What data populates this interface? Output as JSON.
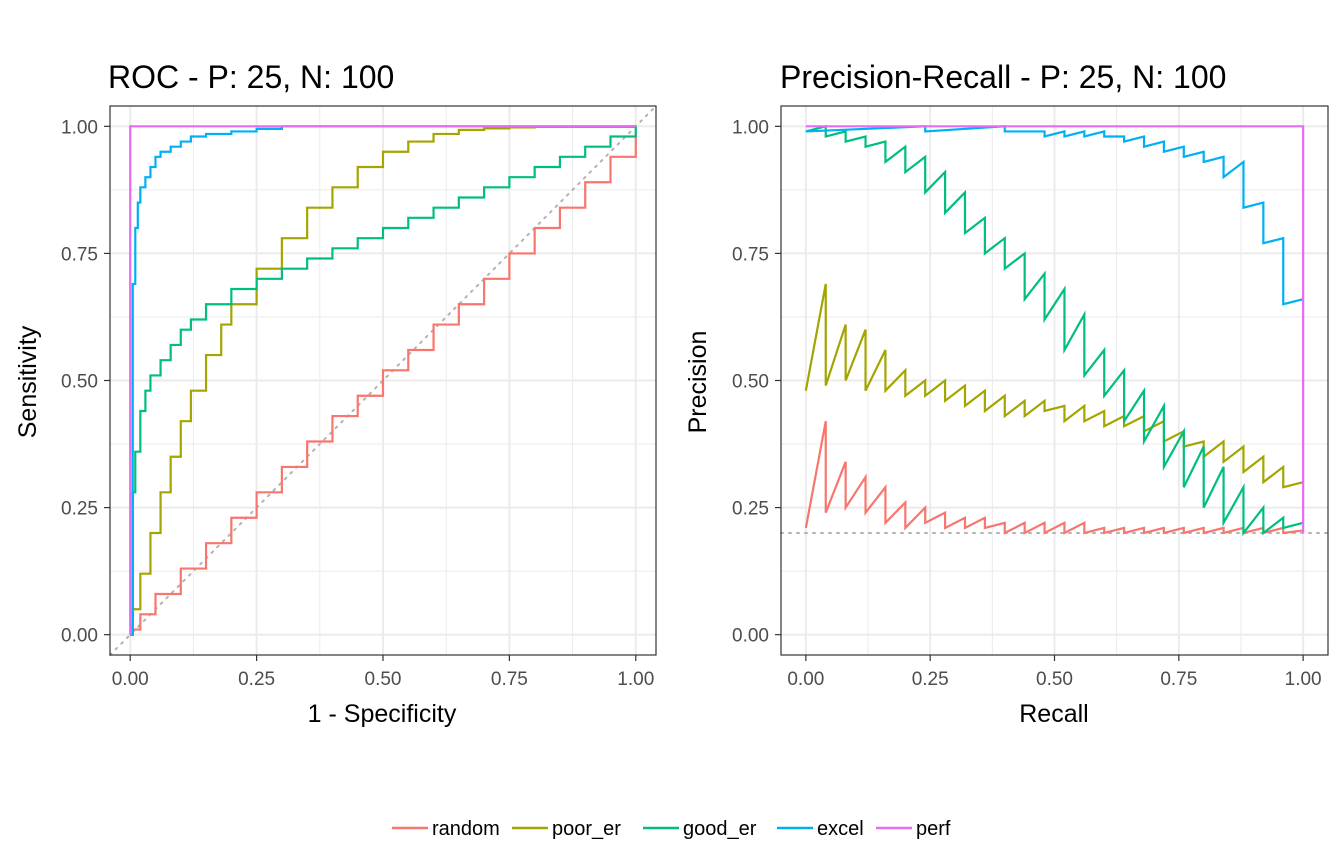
{
  "chart_data": [
    {
      "type": "line",
      "id": "roc",
      "title": "ROC - P: 25, N: 100",
      "xlabel": "1 - Specificity",
      "ylabel": "Sensitivity",
      "xlim": [
        -0.04,
        1.04
      ],
      "ylim": [
        -0.04,
        1.04
      ],
      "x_ticks": [
        "0.00",
        "0.25",
        "0.50",
        "0.75",
        "1.00"
      ],
      "y_ticks": [
        "0.00",
        "0.25",
        "0.50",
        "0.75",
        "1.00"
      ],
      "grid": true,
      "reference_line": {
        "style": "dotted",
        "color": "#b3b3b3",
        "from": [
          -0.04,
          -0.04
        ],
        "to": [
          1.04,
          1.04
        ]
      },
      "series": [
        {
          "name": "random",
          "color": "#F8766D",
          "step": true,
          "x": [
            0,
            0.02,
            0.05,
            0.1,
            0.15,
            0.2,
            0.25,
            0.3,
            0.35,
            0.4,
            0.45,
            0.5,
            0.55,
            0.6,
            0.65,
            0.7,
            0.75,
            0.8,
            0.85,
            0.9,
            0.95,
            1.0
          ],
          "y": [
            0.01,
            0.04,
            0.08,
            0.13,
            0.18,
            0.23,
            0.28,
            0.33,
            0.38,
            0.43,
            0.47,
            0.52,
            0.56,
            0.61,
            0.65,
            0.7,
            0.75,
            0.8,
            0.84,
            0.89,
            0.94,
            0.99
          ]
        },
        {
          "name": "poor_er",
          "color": "#A3A500",
          "step": true,
          "x": [
            0,
            0.005,
            0.02,
            0.04,
            0.06,
            0.08,
            0.1,
            0.12,
            0.15,
            0.18,
            0.2,
            0.25,
            0.3,
            0.35,
            0.4,
            0.45,
            0.5,
            0.55,
            0.6,
            0.65,
            0.7,
            0.75,
            0.8,
            1.0
          ],
          "y": [
            0,
            0.05,
            0.12,
            0.2,
            0.28,
            0.35,
            0.42,
            0.48,
            0.55,
            0.61,
            0.65,
            0.72,
            0.78,
            0.84,
            0.88,
            0.92,
            0.95,
            0.97,
            0.985,
            0.993,
            0.996,
            0.998,
            0.999,
            1.0
          ]
        },
        {
          "name": "good_er",
          "color": "#00BF7D",
          "step": true,
          "x": [
            0,
            0.005,
            0.01,
            0.02,
            0.03,
            0.04,
            0.06,
            0.08,
            0.1,
            0.12,
            0.15,
            0.2,
            0.25,
            0.3,
            0.35,
            0.4,
            0.45,
            0.5,
            0.55,
            0.6,
            0.65,
            0.7,
            0.75,
            0.8,
            0.85,
            0.9,
            0.95,
            1.0
          ],
          "y": [
            0,
            0.28,
            0.36,
            0.44,
            0.48,
            0.51,
            0.54,
            0.57,
            0.6,
            0.62,
            0.65,
            0.68,
            0.7,
            0.72,
            0.74,
            0.76,
            0.78,
            0.8,
            0.82,
            0.84,
            0.86,
            0.88,
            0.9,
            0.92,
            0.94,
            0.96,
            0.98,
            1.0
          ]
        },
        {
          "name": "excel",
          "color": "#00B0F6",
          "step": true,
          "x": [
            0,
            0.005,
            0.01,
            0.015,
            0.02,
            0.03,
            0.04,
            0.05,
            0.06,
            0.08,
            0.1,
            0.12,
            0.15,
            0.2,
            0.25,
            0.3,
            1.0
          ],
          "y": [
            0,
            0.69,
            0.8,
            0.85,
            0.88,
            0.9,
            0.92,
            0.94,
            0.95,
            0.96,
            0.97,
            0.98,
            0.985,
            0.99,
            0.995,
            1.0,
            1.0
          ]
        },
        {
          "name": "perf",
          "color": "#E76BF3",
          "step": false,
          "x": [
            0,
            0,
            1
          ],
          "y": [
            0,
            1,
            1
          ]
        }
      ]
    },
    {
      "type": "line",
      "id": "pr",
      "title": "Precision-Recall - P: 25, N: 100",
      "xlabel": "Recall",
      "ylabel": "Precision",
      "xlim": [
        -0.05,
        1.05
      ],
      "ylim": [
        -0.04,
        1.04
      ],
      "x_ticks": [
        "0.00",
        "0.25",
        "0.50",
        "0.75",
        "1.00"
      ],
      "y_ticks": [
        "0.00",
        "0.25",
        "0.50",
        "0.75",
        "1.00"
      ],
      "grid": true,
      "baseline": {
        "style": "dotted",
        "color": "#b3b3b3",
        "y": 0.2
      },
      "series": [
        {
          "name": "random",
          "color": "#F8766D",
          "x": [
            0,
            0.04,
            0.04,
            0.08,
            0.08,
            0.12,
            0.12,
            0.16,
            0.16,
            0.2,
            0.2,
            0.24,
            0.24,
            0.28,
            0.28,
            0.32,
            0.32,
            0.36,
            0.36,
            0.4,
            0.4,
            0.44,
            0.44,
            0.48,
            0.48,
            0.52,
            0.52,
            0.56,
            0.56,
            0.6,
            0.6,
            0.64,
            0.64,
            0.68,
            0.68,
            0.72,
            0.72,
            0.76,
            0.76,
            0.8,
            0.8,
            0.84,
            0.84,
            0.88,
            0.88,
            0.92,
            0.92,
            0.96,
            0.96,
            1.0
          ],
          "y": [
            0.21,
            0.42,
            0.24,
            0.34,
            0.25,
            0.31,
            0.24,
            0.29,
            0.22,
            0.26,
            0.21,
            0.25,
            0.22,
            0.24,
            0.21,
            0.23,
            0.21,
            0.23,
            0.21,
            0.22,
            0.2,
            0.22,
            0.2,
            0.22,
            0.2,
            0.22,
            0.2,
            0.22,
            0.2,
            0.21,
            0.2,
            0.21,
            0.2,
            0.21,
            0.2,
            0.21,
            0.2,
            0.21,
            0.2,
            0.21,
            0.2,
            0.21,
            0.2,
            0.21,
            0.2,
            0.21,
            0.2,
            0.21,
            0.2,
            0.205
          ]
        },
        {
          "name": "poor_er",
          "color": "#A3A500",
          "x": [
            0,
            0.04,
            0.04,
            0.08,
            0.08,
            0.12,
            0.12,
            0.16,
            0.16,
            0.2,
            0.2,
            0.24,
            0.24,
            0.28,
            0.28,
            0.32,
            0.32,
            0.36,
            0.36,
            0.4,
            0.4,
            0.44,
            0.44,
            0.48,
            0.48,
            0.52,
            0.52,
            0.56,
            0.56,
            0.6,
            0.6,
            0.64,
            0.64,
            0.68,
            0.68,
            0.72,
            0.72,
            0.76,
            0.76,
            0.8,
            0.8,
            0.84,
            0.84,
            0.88,
            0.88,
            0.92,
            0.92,
            0.96,
            0.96,
            1.0
          ],
          "y": [
            0.48,
            0.69,
            0.49,
            0.61,
            0.5,
            0.6,
            0.48,
            0.56,
            0.48,
            0.52,
            0.47,
            0.5,
            0.47,
            0.5,
            0.46,
            0.49,
            0.45,
            0.48,
            0.44,
            0.47,
            0.43,
            0.46,
            0.43,
            0.46,
            0.44,
            0.45,
            0.42,
            0.45,
            0.42,
            0.44,
            0.41,
            0.43,
            0.41,
            0.43,
            0.4,
            0.42,
            0.38,
            0.4,
            0.37,
            0.38,
            0.35,
            0.38,
            0.34,
            0.37,
            0.32,
            0.35,
            0.3,
            0.33,
            0.29,
            0.3
          ]
        },
        {
          "name": "good_er",
          "color": "#00BF7D",
          "x": [
            0,
            0.04,
            0.04,
            0.08,
            0.08,
            0.12,
            0.12,
            0.16,
            0.16,
            0.2,
            0.2,
            0.24,
            0.24,
            0.28,
            0.28,
            0.32,
            0.32,
            0.36,
            0.36,
            0.4,
            0.4,
            0.44,
            0.44,
            0.48,
            0.48,
            0.52,
            0.52,
            0.56,
            0.56,
            0.6,
            0.6,
            0.64,
            0.64,
            0.68,
            0.68,
            0.72,
            0.72,
            0.76,
            0.76,
            0.8,
            0.8,
            0.84,
            0.84,
            0.88,
            0.88,
            0.92,
            0.92,
            0.96,
            0.96,
            1.0
          ],
          "y": [
            0.99,
            1.0,
            0.98,
            0.99,
            0.97,
            0.98,
            0.96,
            0.97,
            0.93,
            0.96,
            0.91,
            0.94,
            0.87,
            0.91,
            0.83,
            0.87,
            0.79,
            0.82,
            0.75,
            0.78,
            0.72,
            0.75,
            0.66,
            0.71,
            0.62,
            0.68,
            0.56,
            0.63,
            0.51,
            0.56,
            0.47,
            0.52,
            0.42,
            0.48,
            0.38,
            0.45,
            0.33,
            0.4,
            0.29,
            0.37,
            0.25,
            0.33,
            0.22,
            0.29,
            0.2,
            0.25,
            0.2,
            0.23,
            0.21,
            0.22
          ]
        },
        {
          "name": "excel",
          "color": "#00B0F6",
          "x": [
            0,
            0.24,
            0.24,
            0.4,
            0.4,
            0.48,
            0.48,
            0.52,
            0.52,
            0.56,
            0.56,
            0.6,
            0.6,
            0.64,
            0.64,
            0.68,
            0.68,
            0.72,
            0.72,
            0.76,
            0.76,
            0.8,
            0.8,
            0.84,
            0.84,
            0.88,
            0.88,
            0.92,
            0.92,
            0.96,
            0.96,
            1.0
          ],
          "y": [
            0.99,
            1.0,
            0.99,
            1.0,
            0.99,
            0.99,
            0.98,
            0.99,
            0.98,
            0.99,
            0.98,
            0.99,
            0.98,
            0.98,
            0.97,
            0.98,
            0.96,
            0.97,
            0.95,
            0.96,
            0.94,
            0.95,
            0.93,
            0.94,
            0.9,
            0.93,
            0.84,
            0.85,
            0.77,
            0.78,
            0.65,
            0.66
          ]
        },
        {
          "name": "perf",
          "color": "#E76BF3",
          "x": [
            0,
            1,
            1
          ],
          "y": [
            1,
            1,
            0.2
          ]
        }
      ]
    }
  ],
  "legend": {
    "position": "bottom",
    "items": [
      {
        "label": "random",
        "color": "#F8766D"
      },
      {
        "label": "poor_er",
        "color": "#A3A500"
      },
      {
        "label": "good_er",
        "color": "#00BF7D"
      },
      {
        "label": "excel",
        "color": "#00B0F6"
      },
      {
        "label": "perf",
        "color": "#E76BF3"
      }
    ]
  }
}
